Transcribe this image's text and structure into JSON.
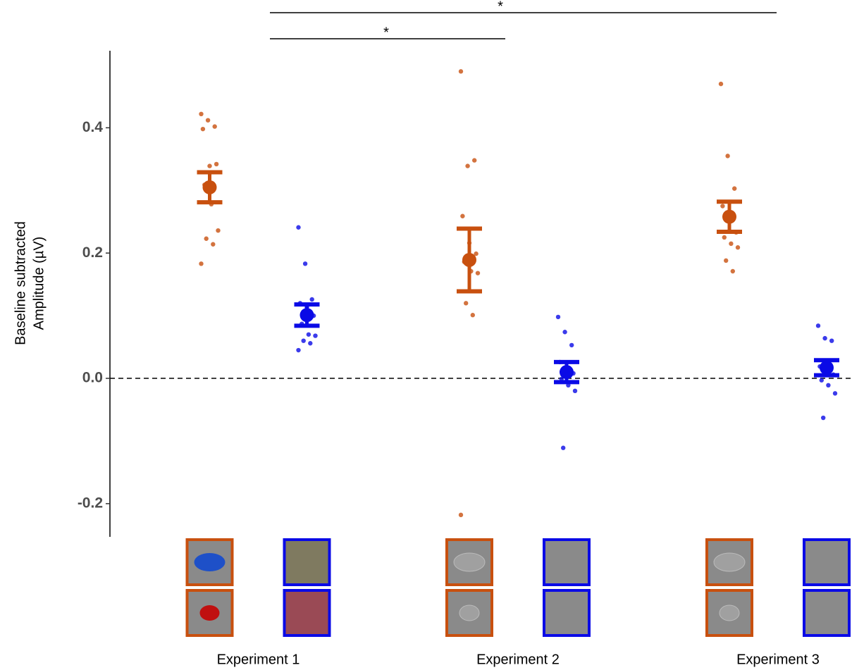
{
  "chart_data": {
    "type": "dot-errorbar",
    "ylabel": [
      "Baseline subtracted",
      "Amplitude (µV)"
    ],
    "categories": [
      "Experiment 1",
      "Experiment 2",
      "Experiment 3"
    ],
    "ylim": [
      -0.253,
      0.523
    ],
    "yticks": [
      -0.2,
      {
        "value": 0,
        "label": "0.0"
      },
      0.2,
      0.4
    ],
    "reference_line": 0,
    "annotations": [
      "*",
      "*"
    ],
    "series": [
      {
        "color": "#c8500f",
        "means": [
          0.305,
          0.189,
          0.258
        ],
        "errors": [
          0.024,
          0.05,
          0.024
        ],
        "points": [
          [
            0.422,
            0.412,
            0.402,
            0.398,
            0.339,
            0.342,
            0.309,
            0.278,
            0.236,
            0.223,
            0.214,
            0.183
          ],
          [
            0.49,
            0.339,
            0.348,
            0.259,
            0.216,
            0.199,
            0.186,
            0.171,
            0.168,
            0.12,
            0.101,
            -0.218
          ],
          [
            0.47,
            0.355,
            0.303,
            0.275,
            0.263,
            0.233,
            0.225,
            0.215,
            0.209,
            0.188,
            0.171
          ]
        ]
      },
      {
        "color": "#0a0ae6",
        "means": [
          0.101,
          0.01,
          0.017
        ],
        "errors": [
          0.017,
          0.016,
          0.012
        ],
        "points": [
          [
            0.241,
            0.183,
            0.126,
            0.12,
            0.113,
            0.1,
            0.087,
            0.07,
            0.068,
            0.06,
            0.056,
            0.045
          ],
          [
            0.098,
            0.074,
            0.053,
            0.026,
            0.017,
            0.008,
            -0.001,
            -0.011,
            -0.02,
            -0.111
          ],
          [
            0.084,
            0.064,
            0.06,
            0.019,
            0.012,
            0.006,
            -0.003,
            -0.011,
            -0.024,
            -0.063
          ]
        ]
      }
    ]
  }
}
